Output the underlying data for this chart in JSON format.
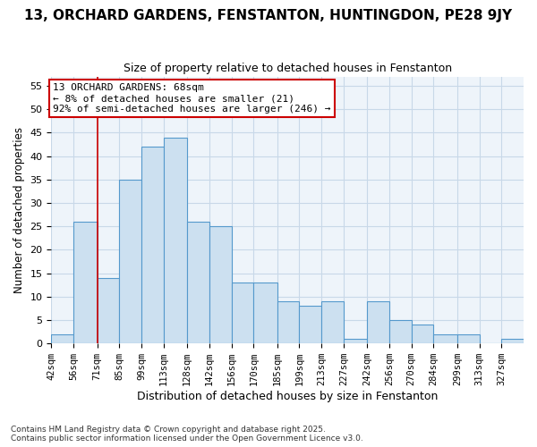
{
  "title": "13, ORCHARD GARDENS, FENSTANTON, HUNTINGDON, PE28 9JY",
  "subtitle": "Size of property relative to detached houses in Fenstanton",
  "xlabel": "Distribution of detached houses by size in Fenstanton",
  "ylabel": "Number of detached properties",
  "bin_edges": [
    42,
    56,
    71,
    85,
    99,
    113,
    128,
    142,
    156,
    170,
    185,
    199,
    213,
    227,
    242,
    256,
    270,
    284,
    299,
    313,
    327,
    341
  ],
  "bin_labels": [
    "42sqm",
    "56sqm",
    "71sqm",
    "85sqm",
    "99sqm",
    "113sqm",
    "128sqm",
    "142sqm",
    "156sqm",
    "170sqm",
    "185sqm",
    "199sqm",
    "213sqm",
    "227sqm",
    "242sqm",
    "256sqm",
    "270sqm",
    "284sqm",
    "299sqm",
    "313sqm",
    "327sqm"
  ],
  "bar_values": [
    2,
    26,
    14,
    35,
    42,
    44,
    26,
    25,
    13,
    13,
    9,
    8,
    9,
    1,
    9,
    5,
    4,
    2,
    2,
    0,
    1
  ],
  "bar_color": "#cce0f0",
  "bar_edge_color": "#5599cc",
  "vline_x": 71,
  "vline_color": "#cc0000",
  "annotation_text": "13 ORCHARD GARDENS: 68sqm\n← 8% of detached houses are smaller (21)\n92% of semi-detached houses are larger (246) →",
  "annotation_box_color": "#ffffff",
  "annotation_box_edge": "#cc0000",
  "ylim": [
    0,
    57
  ],
  "yticks": [
    0,
    5,
    10,
    15,
    20,
    25,
    30,
    35,
    40,
    45,
    50,
    55
  ],
  "grid_color": "#c8d8e8",
  "plot_bg_color": "#eef4fa",
  "fig_bg_color": "#ffffff",
  "title_fontsize": 11,
  "subtitle_fontsize": 9,
  "footer": "Contains HM Land Registry data © Crown copyright and database right 2025.\nContains public sector information licensed under the Open Government Licence v3.0."
}
